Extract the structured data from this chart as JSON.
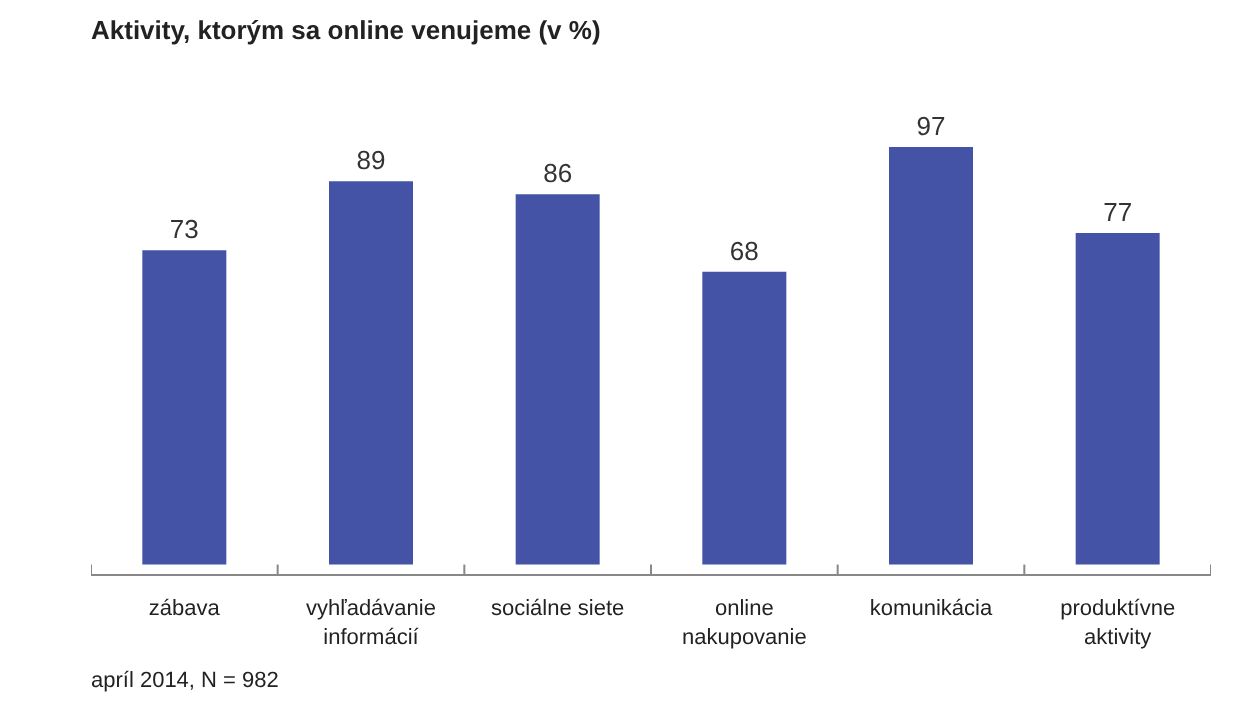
{
  "chart_data": {
    "type": "bar",
    "title": "Aktivity, ktorým sa online venujeme (v %)",
    "categories": [
      "zábava",
      "vyhľadávanie informácií",
      "sociálne siete",
      "online nakupovanie",
      "komunikácia",
      "produktívne aktivity"
    ],
    "values": [
      73,
      89,
      86,
      68,
      97,
      77
    ],
    "color": "#4453a5",
    "data_labels": true,
    "grid": false,
    "annotations": [
      "apríl 2014, N = 982"
    ]
  }
}
